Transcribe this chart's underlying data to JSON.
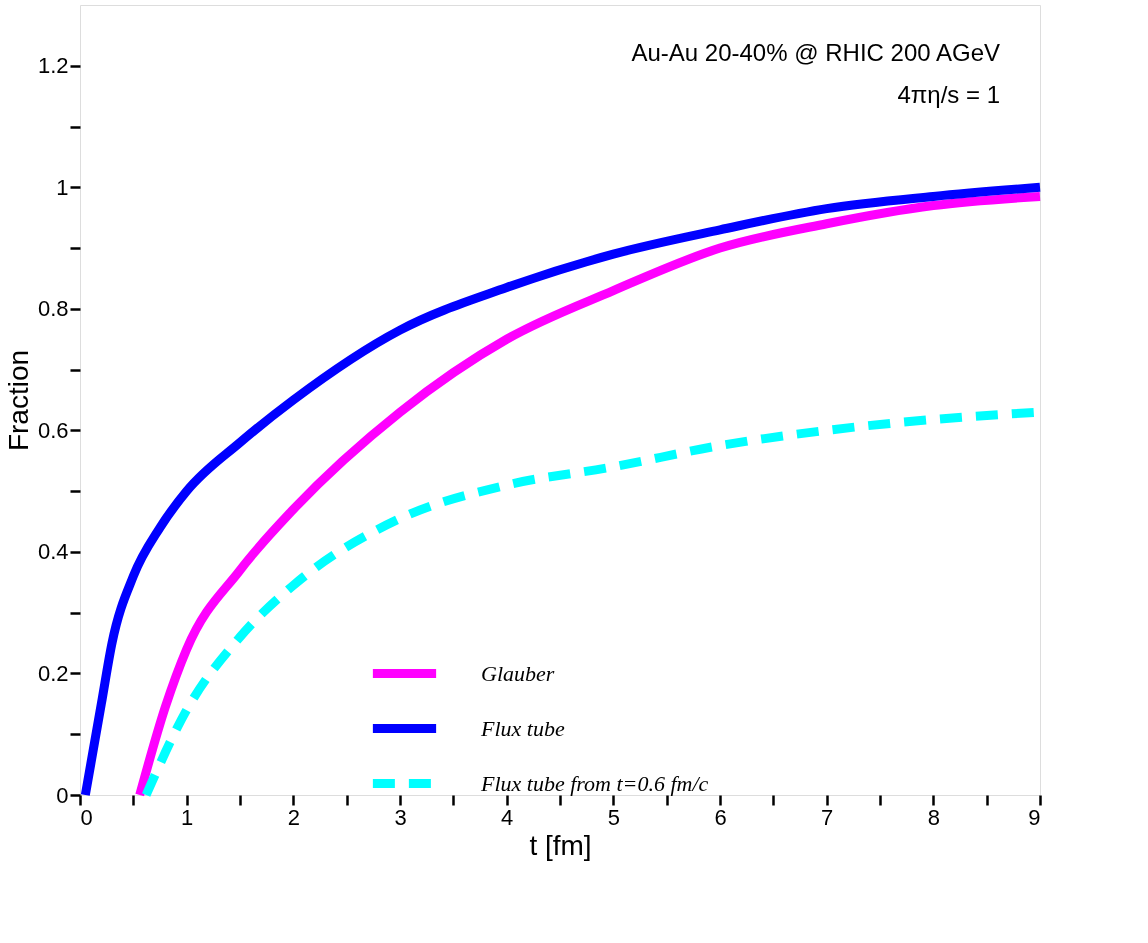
{
  "chart_data": {
    "type": "line",
    "xlabel": "t  [fm]",
    "ylabel": "Fraction",
    "annotations": [
      "Au-Au 20-40% @ RHIC 200 AGeV",
      "4πη/s = 1"
    ],
    "xlim": [
      0,
      9
    ],
    "ylim": [
      0,
      1.3
    ],
    "xticks": [
      0,
      {
        "value": 0.5,
        "label": null
      },
      1,
      {
        "value": 1.5,
        "label": null
      },
      2,
      {
        "value": 2.5,
        "label": null
      },
      3,
      {
        "value": 3.5,
        "label": null
      },
      4,
      {
        "value": 4.5,
        "label": null
      },
      5,
      {
        "value": 5.5,
        "label": null
      },
      6,
      {
        "value": 6.5,
        "label": null
      },
      7,
      {
        "value": 7.5,
        "label": null
      },
      8,
      {
        "value": 8.5,
        "label": null
      },
      9
    ],
    "yticks": [
      0,
      {
        "value": 0.1,
        "label": null
      },
      0.2,
      {
        "value": 0.3,
        "label": null
      },
      0.4,
      {
        "value": 0.5,
        "label": null
      },
      0.6,
      {
        "value": 0.7,
        "label": null
      },
      0.8,
      {
        "value": 0.9,
        "label": null
      },
      1,
      {
        "value": 1.1,
        "label": null
      },
      1.2
    ],
    "grid": false,
    "legend": "bottom",
    "marker": "none",
    "series": [
      {
        "name": "Glauber",
        "color": "#ff00ff",
        "line_style": "solid",
        "x": [
          0.56,
          0.8,
          1,
          1.5,
          2,
          3,
          4,
          5,
          6,
          7,
          8,
          9
        ],
        "values": [
          0,
          0.145,
          0.24,
          0.37,
          0.47,
          0.63,
          0.75,
          0.83,
          0.9,
          0.94,
          0.97,
          0.985
        ]
      },
      {
        "name": "Flux tube",
        "color": "#0000ff",
        "line_style": "solid",
        "x": [
          0.05,
          0.1,
          0.2,
          0.3,
          0.5,
          0.75,
          1,
          1.5,
          2,
          3,
          4,
          5,
          6,
          7,
          8,
          9
        ],
        "values": [
          0,
          0.05,
          0.15,
          0.25,
          0.36,
          0.44,
          0.5,
          0.58,
          0.65,
          0.765,
          0.835,
          0.89,
          0.93,
          0.965,
          0.985,
          1.0
        ]
      },
      {
        "name": "Flux tube from t=0.6 fm/c",
        "color": "#00ffff",
        "line_style": "dashed",
        "x": [
          0.62,
          1,
          1.5,
          2,
          3,
          4,
          5,
          6,
          7,
          8,
          9
        ],
        "values": [
          0,
          0.14,
          0.26,
          0.345,
          0.455,
          0.51,
          0.54,
          0.575,
          0.6,
          0.618,
          0.63
        ]
      }
    ]
  }
}
